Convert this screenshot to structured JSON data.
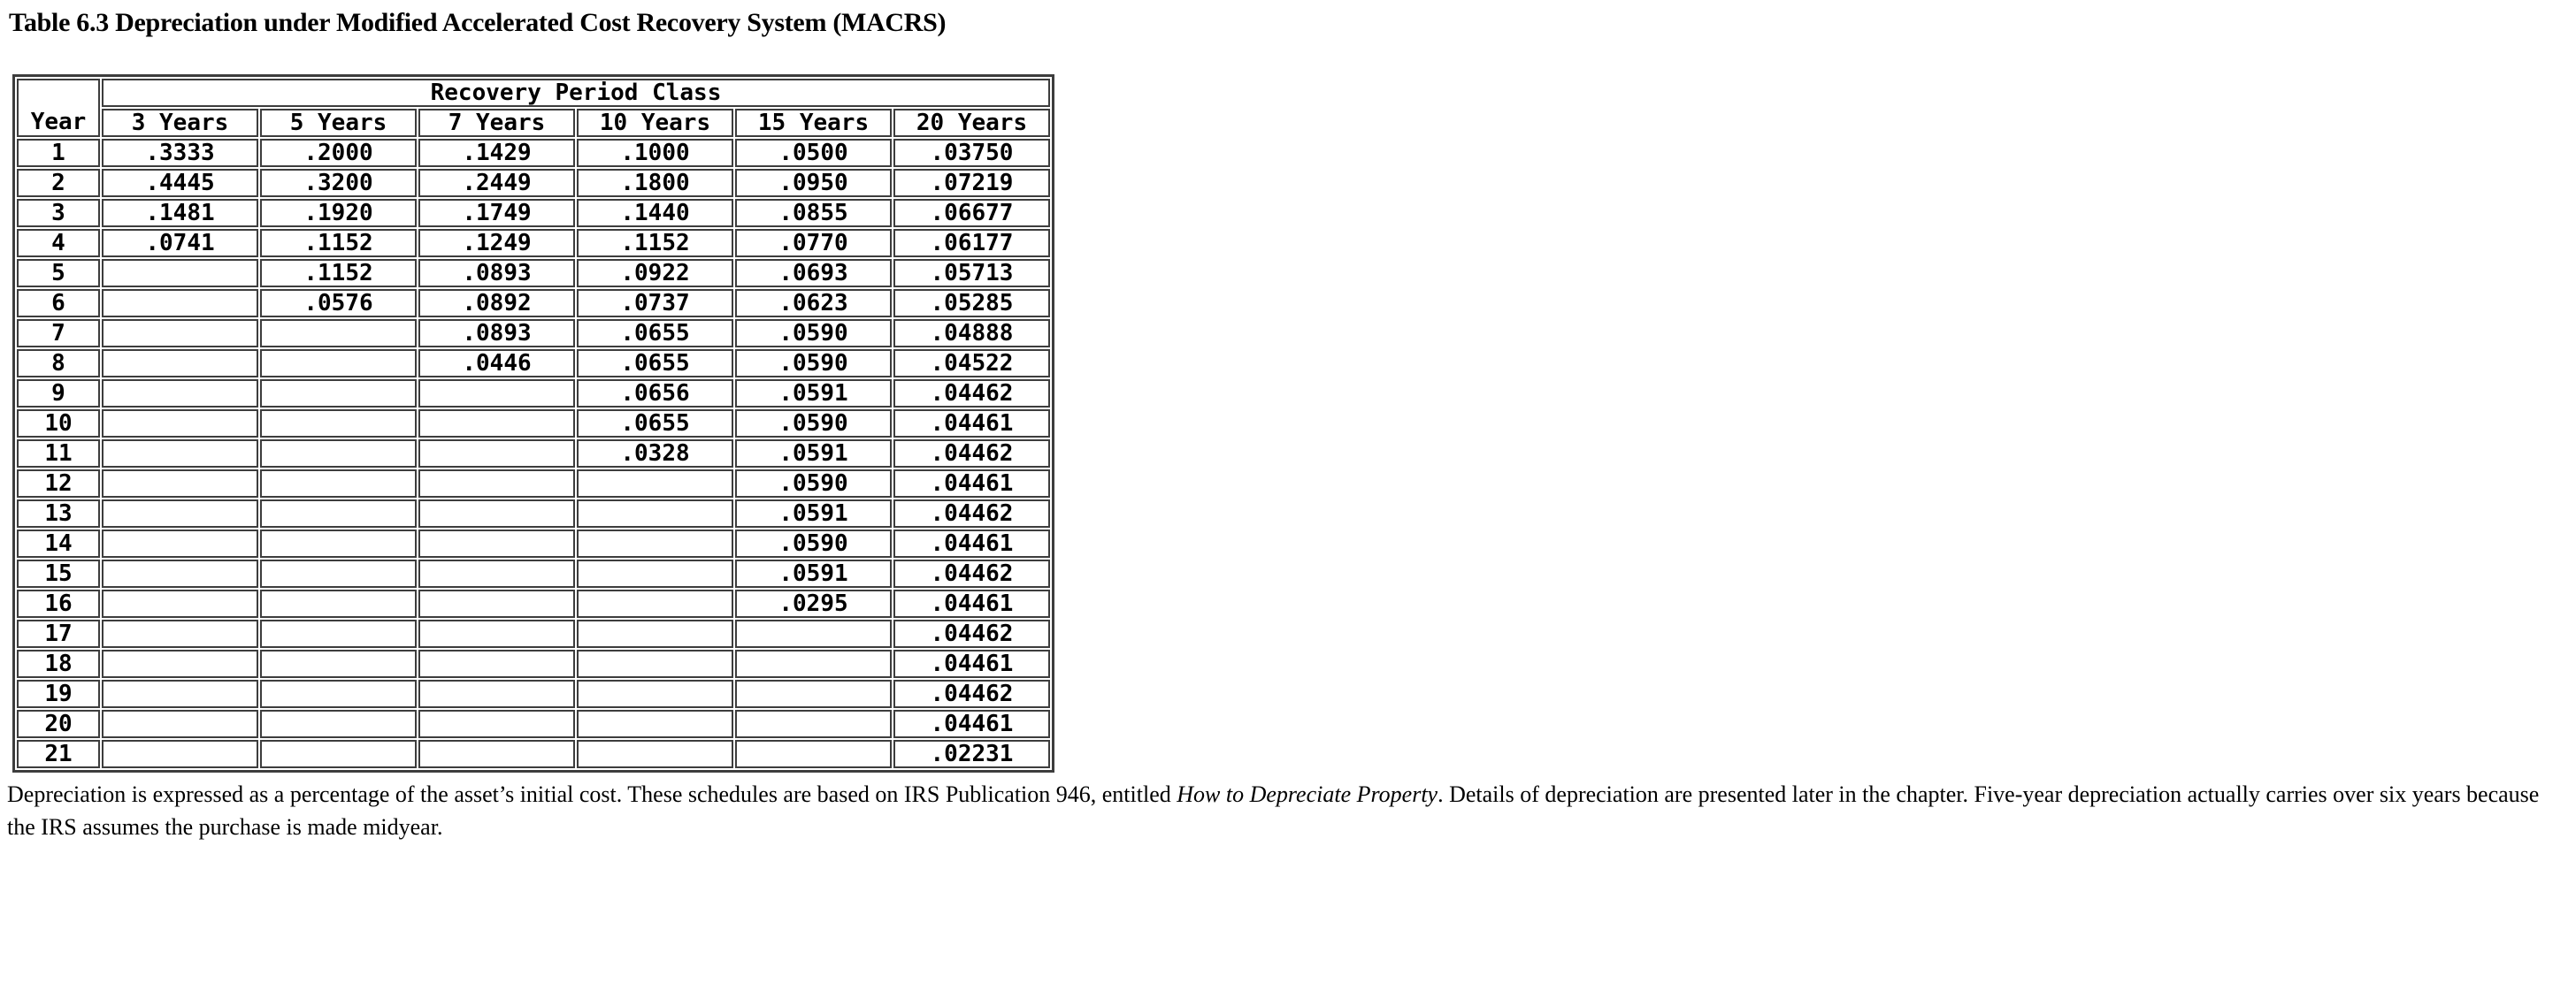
{
  "title": "Table 6.3 Depreciation under Modified Accelerated Cost Recovery System (MACRS)",
  "table": {
    "group_header": "Recovery Period Class",
    "columns": [
      "Year",
      "3 Years",
      "5 Years",
      "7 Years",
      "10 Years",
      "15 Years",
      "20 Years"
    ],
    "rows": [
      {
        "year": "1",
        "values": [
          ".3333",
          ".2000",
          ".1429",
          ".1000",
          ".0500",
          ".03750"
        ]
      },
      {
        "year": "2",
        "values": [
          ".4445",
          ".3200",
          ".2449",
          ".1800",
          ".0950",
          ".07219"
        ]
      },
      {
        "year": "3",
        "values": [
          ".1481",
          ".1920",
          ".1749",
          ".1440",
          ".0855",
          ".06677"
        ]
      },
      {
        "year": "4",
        "values": [
          ".0741",
          ".1152",
          ".1249",
          ".1152",
          ".0770",
          ".06177"
        ]
      },
      {
        "year": "5",
        "values": [
          "",
          ".1152",
          ".0893",
          ".0922",
          ".0693",
          ".05713"
        ]
      },
      {
        "year": "6",
        "values": [
          "",
          ".0576",
          ".0892",
          ".0737",
          ".0623",
          ".05285"
        ]
      },
      {
        "year": "7",
        "values": [
          "",
          "",
          ".0893",
          ".0655",
          ".0590",
          ".04888"
        ]
      },
      {
        "year": "8",
        "values": [
          "",
          "",
          ".0446",
          ".0655",
          ".0590",
          ".04522"
        ]
      },
      {
        "year": "9",
        "values": [
          "",
          "",
          "",
          ".0656",
          ".0591",
          ".04462"
        ]
      },
      {
        "year": "10",
        "values": [
          "",
          "",
          "",
          ".0655",
          ".0590",
          ".04461"
        ]
      },
      {
        "year": "11",
        "values": [
          "",
          "",
          "",
          ".0328",
          ".0591",
          ".04462"
        ]
      },
      {
        "year": "12",
        "values": [
          "",
          "",
          "",
          "",
          ".0590",
          ".04461"
        ]
      },
      {
        "year": "13",
        "values": [
          "",
          "",
          "",
          "",
          ".0591",
          ".04462"
        ]
      },
      {
        "year": "14",
        "values": [
          "",
          "",
          "",
          "",
          ".0590",
          ".04461"
        ]
      },
      {
        "year": "15",
        "values": [
          "",
          "",
          "",
          "",
          ".0591",
          ".04462"
        ]
      },
      {
        "year": "16",
        "values": [
          "",
          "",
          "",
          "",
          ".0295",
          ".04461"
        ]
      },
      {
        "year": "17",
        "values": [
          "",
          "",
          "",
          "",
          "",
          ".04462"
        ]
      },
      {
        "year": "18",
        "values": [
          "",
          "",
          "",
          "",
          "",
          ".04461"
        ]
      },
      {
        "year": "19",
        "values": [
          "",
          "",
          "",
          "",
          "",
          ".04462"
        ]
      },
      {
        "year": "20",
        "values": [
          "",
          "",
          "",
          "",
          "",
          ".04461"
        ]
      },
      {
        "year": "21",
        "values": [
          "",
          "",
          "",
          "",
          "",
          ".02231"
        ]
      }
    ]
  },
  "footnote": {
    "part1": "Depreciation is expressed as a percentage of the asset’s initial cost. These schedules are based on IRS Publication 946, entitled ",
    "italic": "How to Depreciate Property",
    "part2": ". Details of depreciation are presented later in the chapter. Five-year depreciation actually carries over six years because the IRS assumes the purchase is made midyear."
  }
}
